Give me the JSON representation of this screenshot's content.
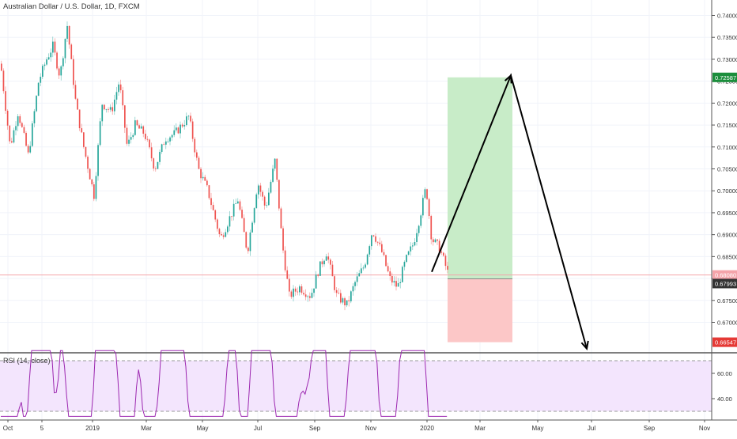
{
  "header": {
    "title": "Australian Dollar / U.S. Dollar, 1D, FXCM"
  },
  "rsi_panel": {
    "label": "RSI (14, close)",
    "ticks": [
      "60.00",
      "40.00"
    ]
  },
  "colors": {
    "up": "#26a69a",
    "down": "#ef5350",
    "grid": "#f0f3fa",
    "price_line": "#f4a4aa",
    "rsi_line": "#9c27b0",
    "rsi_band": "#f3e5fd",
    "long_profit_zone": "#c8ecc8",
    "long_loss_zone": "#fcc7c7",
    "target_tag": "#1b8e3c",
    "stop_tag": "#e53935",
    "last_price_tag": "#f4a4aa",
    "entry_tag": "#333333"
  },
  "chart_data": {
    "type": "candlestick",
    "symbol": "Australian Dollar / U.S. Dollar",
    "interval": "1D",
    "source": "FXCM",
    "x_ticks": [
      "Oct",
      "5",
      "2019",
      "Mar",
      "May",
      "Jul",
      "Sep",
      "Nov",
      "2020",
      "Mar",
      "May",
      "Jul",
      "Sep",
      "Nov"
    ],
    "y_ticks": [
      "0.74000",
      "0.73500",
      "0.73000",
      "0.72500",
      "0.72000",
      "0.71500",
      "0.71000",
      "0.70500",
      "0.70000",
      "0.69500",
      "0.69000",
      "0.68500",
      "0.68000",
      "0.67500",
      "0.67000"
    ],
    "ylim": [
      0.6625,
      0.7425
    ],
    "price_series_approx": [
      {
        "x": "Oct",
        "y": 0.729
      },
      {
        "x": "Oct",
        "y": 0.71
      },
      {
        "x": "5",
        "y": 0.725
      },
      {
        "x": "5",
        "y": 0.733
      },
      {
        "x": "5",
        "y": 0.738
      },
      {
        "x": "2019",
        "y": 0.715
      },
      {
        "x": "2019",
        "y": 0.7
      },
      {
        "x": "2019",
        "y": 0.72
      },
      {
        "x": "Mar",
        "y": 0.71
      },
      {
        "x": "Mar",
        "y": 0.713
      },
      {
        "x": "May",
        "y": 0.717
      },
      {
        "x": "May",
        "y": 0.7
      },
      {
        "x": "May",
        "y": 0.688
      },
      {
        "x": "Jul",
        "y": 0.698
      },
      {
        "x": "Jul",
        "y": 0.708
      },
      {
        "x": "Jul",
        "y": 0.698
      },
      {
        "x": "Sep",
        "y": 0.676
      },
      {
        "x": "Sep",
        "y": 0.675
      },
      {
        "x": "Sep",
        "y": 0.686
      },
      {
        "x": "Nov",
        "y": 0.676
      },
      {
        "x": "Nov",
        "y": 0.69
      },
      {
        "x": "Nov",
        "y": 0.679
      },
      {
        "x": "2020",
        "y": 0.689
      },
      {
        "x": "2020",
        "y": 0.701
      },
      {
        "x": "2020",
        "y": 0.688
      },
      {
        "x": "2020",
        "y": 0.681
      }
    ],
    "last_price": 0.6808,
    "last_price_label": "0.68080",
    "position": {
      "side": "long",
      "entry": 0.67993,
      "entry_label": "0.67993",
      "target": 0.72587,
      "target_label": "0.72587",
      "stop": 0.66547,
      "stop_label": "0.66547"
    },
    "projection_path": [
      {
        "x": "2020",
        "y": 0.6815
      },
      {
        "x": "Mar",
        "y": 0.7263
      },
      {
        "x": "Jul",
        "y": 0.664
      }
    ],
    "rsi": {
      "name": "RSI (14, close)",
      "upper_band": 70,
      "lower_band": 30,
      "visible_ticks": [
        60,
        40
      ]
    }
  }
}
